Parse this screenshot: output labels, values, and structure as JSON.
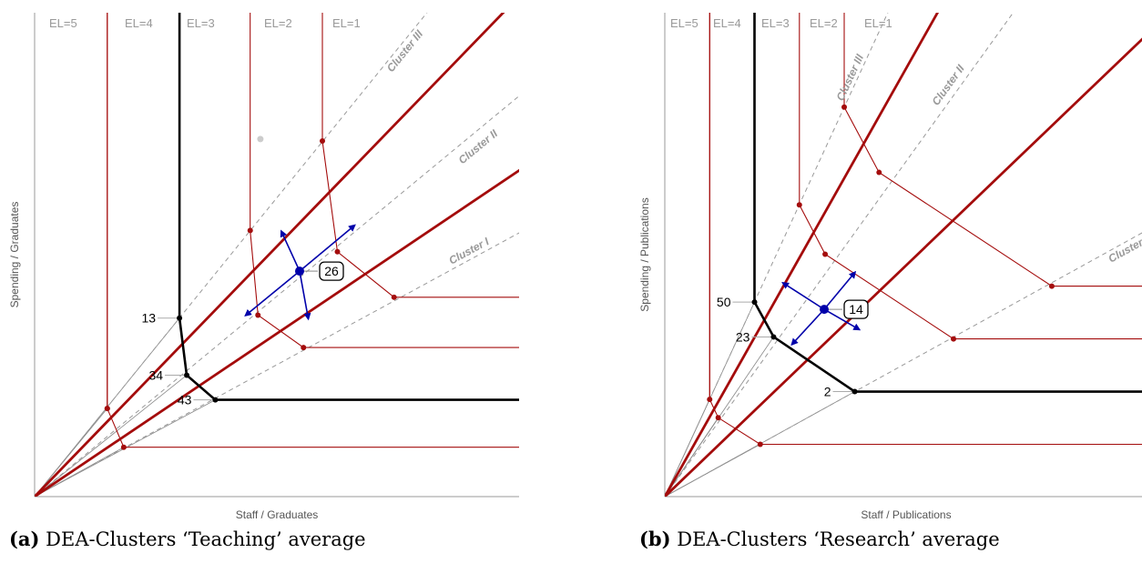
{
  "chart_data": [
    {
      "type": "scatter",
      "caption_label": "(a)",
      "caption_text": "DEA-Clusters ‘Teaching’ average",
      "xlabel": "Staff / Graduates",
      "ylabel": "Spending / Graduates",
      "xlim": [
        0,
        100
      ],
      "ylim": [
        0,
        100
      ],
      "colors": {
        "level": "#a40c0c",
        "frontier": "#000000",
        "ray": "#888888",
        "cluster": "#999999",
        "focus": "#0000aa"
      },
      "efficiency_levels": [
        {
          "label": "EL=5",
          "points": [
            [
              0,
              0
            ],
            [
              15.0,
              18.2
            ],
            [
              18.4,
              10.2
            ],
            [
              100,
              10.2
            ]
          ],
          "top": [
            15.0,
            100
          ]
        },
        {
          "label": "EL=4",
          "points": [
            [
              0,
              0
            ],
            [
              15.0,
              18.2
            ],
            [
              15.0,
              18.2
            ]
          ],
          "top": [
            15.0,
            100
          ]
        },
        {
          "label": "EL=3",
          "points": [
            [
              0,
              0
            ],
            [
              29.9,
              36.9
            ],
            [
              31.4,
              25.1
            ],
            [
              37.3,
              20.0
            ],
            [
              100,
              20.0
            ]
          ],
          "top": [
            29.9,
            100
          ],
          "frontier": true
        },
        {
          "label": "EL=2",
          "points": [
            [
              0,
              0
            ],
            [
              44.5,
              55.0
            ],
            [
              46.1,
              37.5
            ],
            [
              55.5,
              30.8
            ],
            [
              100,
              30.8
            ]
          ],
          "top": [
            44.5,
            100
          ]
        },
        {
          "label": "EL=1",
          "points": [
            [
              0,
              0
            ],
            [
              59.4,
              73.5
            ],
            [
              62.5,
              50.6
            ],
            [
              74.2,
              41.2
            ],
            [
              100,
              41.2
            ]
          ],
          "top": [
            59.4,
            100
          ]
        }
      ],
      "el_labels": [
        "EL=5",
        "EL=4",
        "EL=3",
        "EL=2",
        "EL=1"
      ],
      "frontier_units": [
        {
          "id": "13",
          "x": 29.9,
          "y": 36.9
        },
        {
          "id": "34",
          "x": 31.4,
          "y": 25.1
        },
        {
          "id": "43",
          "x": 37.3,
          "y": 20.0
        }
      ],
      "inactive_point": [
        46.6,
        73.9
      ],
      "focus_unit": {
        "id": "26",
        "x": 54.7,
        "y": 46.6,
        "arrows": [
          [
            [
              54.7,
              46.6
            ],
            [
              50.9,
              54.9
            ]
          ],
          [
            [
              54.7,
              46.6
            ],
            [
              56.5,
              36.7
            ]
          ],
          [
            [
              54.7,
              46.6
            ],
            [
              66.1,
              56.1
            ]
          ],
          [
            [
              54.7,
              46.6
            ],
            [
              43.5,
              37.4
            ]
          ]
        ]
      },
      "clusters": [
        {
          "name": "Cluster III",
          "slope": 1.235,
          "label_at": [
            77.0,
            91.6
          ]
        },
        {
          "name": "Cluster II",
          "slope": 0.828,
          "label_at": [
            92.0,
            71.7
          ]
        },
        {
          "name": "Cluster I",
          "slope": 0.545,
          "label_at": [
            90.0,
            50.1
          ]
        }
      ],
      "bounds": [
        {
          "slope": 1.034
        },
        {
          "slope": 0.674
        }
      ]
    },
    {
      "type": "scatter",
      "caption_label": "(b)",
      "caption_text": "DEA-Clusters ‘Research’ average",
      "xlabel": "Staff / Publications",
      "ylabel": "Spending / Publications",
      "xlim": [
        0,
        100
      ],
      "ylim": [
        0,
        100
      ],
      "colors": {
        "level": "#a40c0c",
        "frontier": "#000000",
        "ray": "#888888",
        "cluster": "#999999",
        "focus": "#0000aa"
      },
      "efficiency_levels": [
        {
          "label": "EL=5",
          "points": [
            [
              0,
              0
            ],
            [
              9.4,
              20.1
            ],
            [
              11.2,
              16.3
            ],
            [
              20.0,
              10.8
            ],
            [
              100,
              10.8
            ]
          ],
          "top": [
            9.4,
            100
          ]
        },
        {
          "label": "EL=4",
          "points": [
            [
              0,
              0
            ],
            [
              9.4,
              20.1
            ]
          ],
          "top": [
            9.4,
            100
          ]
        },
        {
          "label": "EL=3",
          "points": [
            [
              0,
              0
            ],
            [
              18.8,
              40.2
            ],
            [
              22.8,
              33.0
            ],
            [
              39.8,
              21.7
            ],
            [
              100,
              21.7
            ]
          ],
          "top": [
            18.8,
            100
          ],
          "frontier": true
        },
        {
          "label": "EL=2",
          "points": [
            [
              0,
              0
            ],
            [
              28.2,
              60.3
            ],
            [
              33.6,
              50.1
            ],
            [
              60.5,
              32.6
            ],
            [
              100,
              32.6
            ]
          ],
          "top": [
            28.2,
            100
          ]
        },
        {
          "label": "EL=1",
          "points": [
            [
              0,
              0
            ],
            [
              37.6,
              80.5
            ],
            [
              44.9,
              67.0
            ],
            [
              81.1,
              43.5
            ],
            [
              100,
              43.5
            ]
          ],
          "top": [
            37.6,
            100
          ]
        }
      ],
      "el_labels": [
        "EL=5",
        "EL=4",
        "EL=3",
        "EL=2",
        "EL=1"
      ],
      "frontier_units": [
        {
          "id": "50",
          "x": 18.8,
          "y": 40.2
        },
        {
          "id": "23",
          "x": 22.8,
          "y": 33.0
        },
        {
          "id": "2",
          "x": 39.8,
          "y": 21.7
        }
      ],
      "focus_unit": {
        "id": "14",
        "x": 33.4,
        "y": 38.7,
        "arrows": [
          [
            [
              33.4,
              38.7
            ],
            [
              39.9,
              46.4
            ]
          ],
          [
            [
              33.4,
              38.7
            ],
            [
              26.6,
              31.4
            ]
          ],
          [
            [
              33.4,
              38.7
            ],
            [
              24.7,
              44.2
            ]
          ],
          [
            [
              33.4,
              38.7
            ],
            [
              40.8,
              34.5
            ]
          ]
        ]
      },
      "clusters": [
        {
          "name": "Cluster III",
          "slope": 2.14,
          "label_at": [
            39.5,
            86.3
          ]
        },
        {
          "name": "Cluster II",
          "slope": 1.37,
          "label_at": [
            60.0,
            84.6
          ]
        },
        {
          "name": "Cluster I",
          "slope": 0.545,
          "label_at": [
            97.5,
            50.5
          ]
        }
      ],
      "bounds": [
        {
          "slope": 1.75
        },
        {
          "slope": 0.945
        }
      ]
    }
  ]
}
